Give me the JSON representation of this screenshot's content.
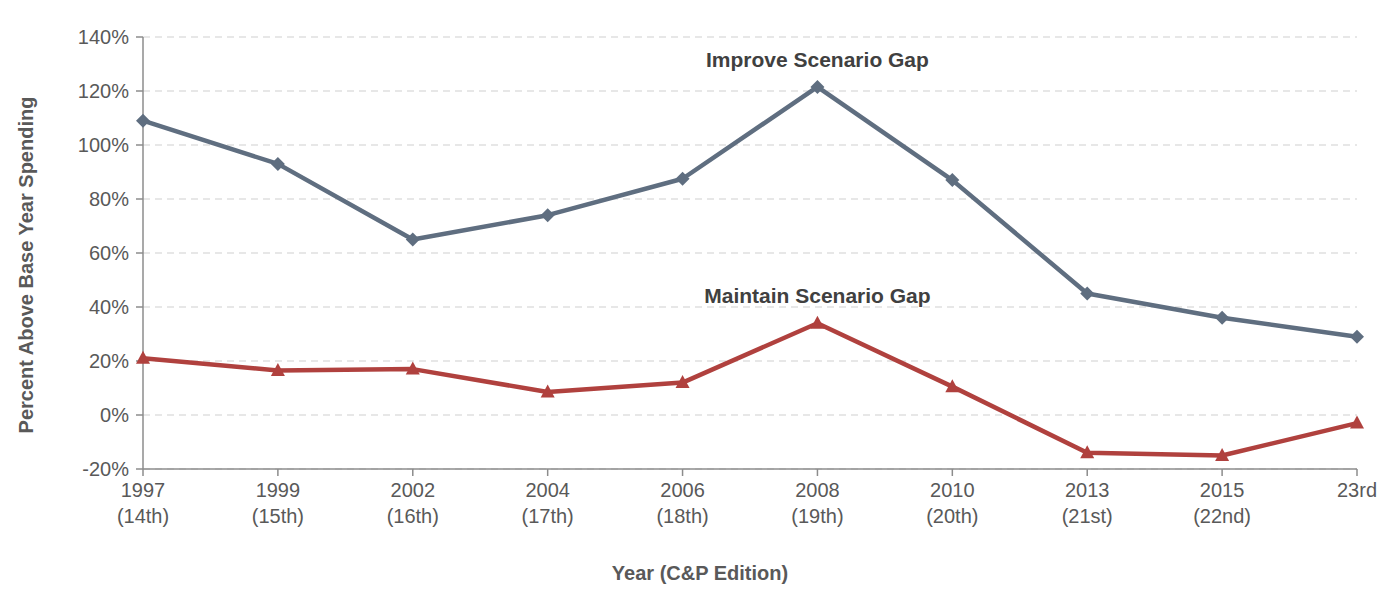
{
  "chart_data": {
    "type": "line",
    "x_label": "Year (C&P Edition)",
    "y_label": "Percent Above Base Year Spending",
    "categories": [
      "1997\n(14th)",
      "1999\n(15th)",
      "2002\n(16th)",
      "2004\n(17th)",
      "2006\n(18th)",
      "2008\n(19th)",
      "2010\n(20th)",
      "2013\n(21st)",
      "2015\n(22nd)",
      "23rd"
    ],
    "series": [
      {
        "name": "Improve Scenario Gap",
        "color": "#5f6e80",
        "marker": "diamond",
        "values": [
          109,
          93,
          65,
          74,
          87.5,
          121.5,
          87,
          45,
          36,
          29
        ]
      },
      {
        "name": "Maintain Scenario Gap",
        "color": "#b0413e",
        "marker": "triangle",
        "values": [
          21,
          16.5,
          17,
          8.5,
          12,
          34,
          10.5,
          -14,
          -15,
          -3
        ]
      }
    ],
    "ylim": [
      -20,
      140
    ],
    "yticks": [
      {
        "value": -20,
        "label": "-20%"
      },
      {
        "value": 0,
        "label": "0%"
      },
      {
        "value": 20,
        "label": "20%"
      },
      {
        "value": 40,
        "label": "40%"
      },
      {
        "value": 60,
        "label": "60%"
      },
      {
        "value": 80,
        "label": "80%"
      },
      {
        "value": 100,
        "label": "100%"
      },
      {
        "value": 120,
        "label": "120%"
      },
      {
        "value": 140,
        "label": "140%"
      }
    ],
    "grid": true
  }
}
